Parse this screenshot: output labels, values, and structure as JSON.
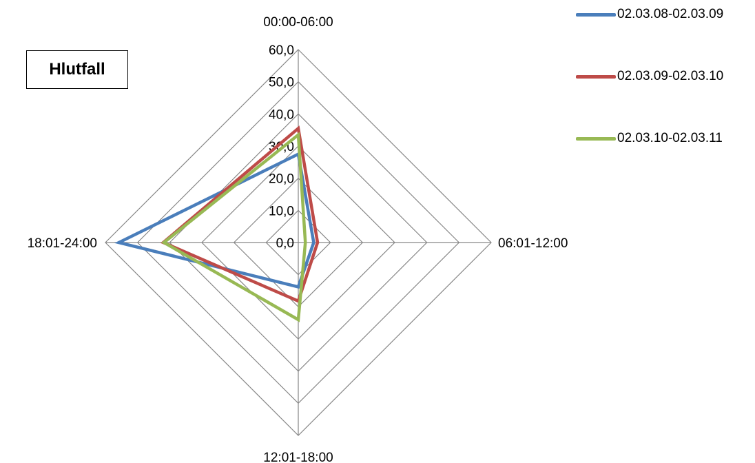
{
  "chart_data": {
    "type": "radar",
    "title": "Hlutfall",
    "categories": [
      "00:00-06:00",
      "06:01-12:00",
      "12:01-18:00",
      "18:01-24:00"
    ],
    "rlim": [
      0,
      60
    ],
    "tick_values": [
      0,
      10,
      20,
      30,
      40,
      50,
      60
    ],
    "tick_labels": [
      "0,0",
      "10,0",
      "20,0",
      "30,0",
      "40,0",
      "50,0",
      "60,0"
    ],
    "grid": true,
    "legend_position": "top-right",
    "series": [
      {
        "name": "02.03.08-02.03.09",
        "color": "#4a7ebb",
        "values": [
          27.5,
          4.8,
          13.8,
          55.8
        ]
      },
      {
        "name": "02.03.09-02.03.10",
        "color": "#be4b48",
        "values": [
          35.5,
          6.0,
          18.2,
          42.0
        ]
      },
      {
        "name": "02.03.10-02.03.11",
        "color": "#98b954",
        "values": [
          33.5,
          2.2,
          24.0,
          41.8
        ]
      }
    ]
  }
}
